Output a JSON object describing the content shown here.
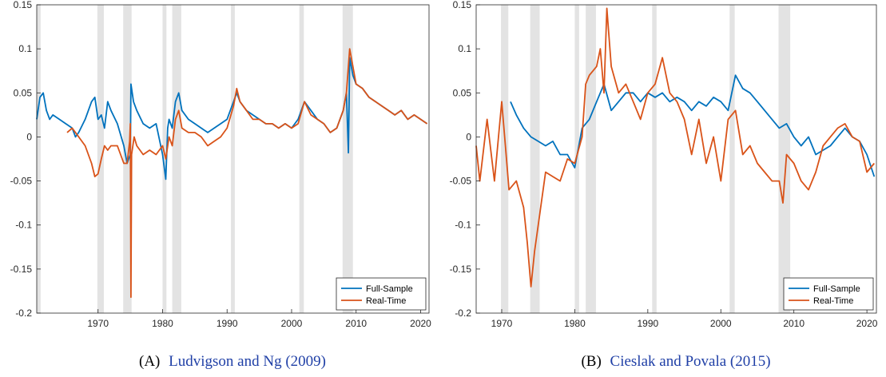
{
  "chart_data": [
    {
      "type": "line",
      "caption": {
        "tag": "(A)",
        "title": "Ludvigson and Ng (2009)"
      },
      "xlim": [
        1960.5,
        2021.3
      ],
      "ylim": [
        -0.2,
        0.15
      ],
      "xticks": [
        1970,
        1980,
        1990,
        2000,
        2010,
        2020
      ],
      "yticks": [
        -0.2,
        -0.15,
        -0.1,
        -0.05,
        0,
        0.05,
        0.1,
        0.15
      ],
      "ytick_labels": [
        "-0.2",
        "-0.15",
        "-0.1",
        "-0.05",
        "0",
        "0.05",
        "0.1",
        "0.15"
      ],
      "grid": false,
      "legend": "bottom-right",
      "recessions": [
        [
          1960.3,
          1961.1
        ],
        [
          1969.9,
          1970.9
        ],
        [
          1973.9,
          1975.2
        ],
        [
          1980.0,
          1980.6
        ],
        [
          1981.5,
          1982.9
        ],
        [
          1990.6,
          1991.2
        ],
        [
          2001.2,
          2001.9
        ],
        [
          2007.9,
          2009.5
        ]
      ],
      "series": [
        {
          "name": "Full-Sample",
          "color": "#0072bd",
          "x": [
            1960.5,
            1961,
            1961.5,
            1962,
            1962.5,
            1963,
            1964,
            1965,
            1966,
            1966.5,
            1967,
            1968,
            1969,
            1969.5,
            1970,
            1970.5,
            1971,
            1971.5,
            1972,
            1973,
            1974,
            1974.5,
            1975,
            1975.1,
            1975.5,
            1976,
            1977,
            1978,
            1979,
            1980,
            1980.5,
            1980.8,
            1981,
            1981.5,
            1982,
            1982.5,
            1983,
            1984,
            1985,
            1986,
            1987,
            1988,
            1989,
            1990,
            1991,
            1991.5,
            1992,
            1993,
            1994,
            1995,
            1996,
            1997,
            1998,
            1999,
            2000,
            2001,
            2002,
            2003,
            2004,
            2005,
            2006,
            2007,
            2008,
            2008.5,
            2008.8,
            2009,
            2009.5,
            2010,
            2011,
            2012,
            2013,
            2014,
            2015,
            2016,
            2017,
            2018,
            2019,
            2020,
            2021
          ],
          "y": [
            0.02,
            0.045,
            0.05,
            0.03,
            0.02,
            0.025,
            0.02,
            0.015,
            0.01,
            0.0,
            0.005,
            0.02,
            0.04,
            0.045,
            0.02,
            0.025,
            0.01,
            0.04,
            0.03,
            0.015,
            -0.01,
            -0.03,
            -0.02,
            0.06,
            0.04,
            0.03,
            0.015,
            0.01,
            0.015,
            -0.02,
            -0.048,
            0.01,
            0.02,
            0.01,
            0.04,
            0.05,
            0.03,
            0.02,
            0.015,
            0.01,
            0.005,
            0.01,
            0.015,
            0.02,
            0.04,
            0.05,
            0.04,
            0.03,
            0.025,
            0.02,
            0.015,
            0.015,
            0.01,
            0.015,
            0.01,
            0.02,
            0.04,
            0.03,
            0.02,
            0.015,
            0.005,
            0.01,
            0.03,
            0.05,
            -0.018,
            0.09,
            0.07,
            0.06,
            0.055,
            0.045,
            0.04,
            0.035,
            0.03,
            0.025,
            0.03,
            0.02,
            0.025,
            0.02,
            0.015
          ]
        },
        {
          "name": "Real-Time",
          "color": "#d95319",
          "x": [
            1965.2,
            1966,
            1967,
            1968,
            1969,
            1969.5,
            1970,
            1970.5,
            1971,
            1971.5,
            1972,
            1973,
            1974,
            1974.5,
            1974.9,
            1975,
            1975.1,
            1975.2,
            1975.4,
            1975.6,
            1976,
            1977,
            1978,
            1979,
            1980,
            1980.5,
            1981,
            1981.5,
            1982,
            1982.5,
            1983,
            1984,
            1985,
            1986,
            1987,
            1988,
            1989,
            1990,
            1991,
            1991.5,
            1992,
            1993,
            1994,
            1995,
            1996,
            1997,
            1998,
            1999,
            2000,
            2001,
            2002,
            2003,
            2004,
            2005,
            2006,
            2007,
            2008,
            2008.5,
            2009,
            2009.5,
            2010,
            2011,
            2012,
            2013,
            2014,
            2015,
            2016,
            2017,
            2018,
            2019,
            2020,
            2021
          ],
          "y": [
            0.005,
            0.01,
            0.0,
            -0.01,
            -0.03,
            -0.045,
            -0.042,
            -0.025,
            -0.01,
            -0.015,
            -0.01,
            -0.01,
            -0.03,
            -0.03,
            -0.005,
            0.015,
            -0.182,
            -0.02,
            -0.01,
            0.0,
            -0.01,
            -0.02,
            -0.015,
            -0.02,
            -0.01,
            -0.025,
            0.0,
            -0.01,
            0.02,
            0.03,
            0.01,
            0.005,
            0.005,
            0.0,
            -0.01,
            -0.005,
            0.0,
            0.01,
            0.035,
            0.055,
            0.04,
            0.03,
            0.02,
            0.02,
            0.015,
            0.015,
            0.01,
            0.015,
            0.01,
            0.015,
            0.04,
            0.025,
            0.02,
            0.015,
            0.005,
            0.01,
            0.03,
            0.05,
            0.1,
            0.08,
            0.06,
            0.055,
            0.045,
            0.04,
            0.035,
            0.03,
            0.025,
            0.03,
            0.02,
            0.025,
            0.02,
            0.015
          ]
        }
      ]
    },
    {
      "type": "line",
      "caption": {
        "tag": "(B)",
        "title": "Cieslak and Povala (2015)"
      },
      "xlim": [
        1966.5,
        2021.3
      ],
      "ylim": [
        -0.2,
        0.15
      ],
      "xticks": [
        1970,
        1980,
        1990,
        2000,
        2010,
        2020
      ],
      "yticks": [
        -0.2,
        -0.15,
        -0.1,
        -0.05,
        0,
        0.05,
        0.1,
        0.15
      ],
      "ytick_labels": [
        "-0.2",
        "-0.15",
        "-0.1",
        "-0.05",
        "0",
        "0.05",
        "0.1",
        "0.15"
      ],
      "grid": false,
      "legend": "bottom-right",
      "recessions": [
        [
          1969.9,
          1970.9
        ],
        [
          1973.9,
          1975.2
        ],
        [
          1980.0,
          1980.6
        ],
        [
          1981.5,
          1982.9
        ],
        [
          1990.6,
          1991.2
        ],
        [
          2001.2,
          2001.9
        ],
        [
          2007.9,
          2009.5
        ]
      ],
      "series": [
        {
          "name": "Full-Sample",
          "color": "#0072bd",
          "x": [
            1971.2,
            1972,
            1973,
            1974,
            1975,
            1976,
            1977,
            1978,
            1979,
            1980,
            1981,
            1982,
            1983,
            1984,
            1985,
            1986,
            1987,
            1988,
            1989,
            1990,
            1991,
            1992,
            1993,
            1994,
            1995,
            1996,
            1997,
            1998,
            1999,
            2000,
            2001,
            2002,
            2003,
            2004,
            2005,
            2006,
            2007,
            2008,
            2009,
            2010,
            2011,
            2012,
            2013,
            2014,
            2015,
            2016,
            2017,
            2018,
            2019,
            2020,
            2021
          ],
          "y": [
            0.04,
            0.025,
            0.01,
            0.0,
            -0.005,
            -0.01,
            -0.005,
            -0.02,
            -0.02,
            -0.035,
            0.01,
            0.02,
            0.04,
            0.06,
            0.03,
            0.04,
            0.05,
            0.05,
            0.04,
            0.05,
            0.045,
            0.05,
            0.04,
            0.045,
            0.04,
            0.03,
            0.04,
            0.035,
            0.045,
            0.04,
            0.03,
            0.07,
            0.055,
            0.05,
            0.04,
            0.03,
            0.02,
            0.01,
            0.015,
            0.0,
            -0.01,
            0.0,
            -0.02,
            -0.015,
            -0.01,
            0.0,
            0.01,
            0.0,
            -0.005,
            -0.02,
            -0.045
          ]
        },
        {
          "name": "Real-Time",
          "color": "#d95319",
          "x": [
            1966.5,
            1967,
            1968,
            1969,
            1970,
            1970.5,
            1971,
            1972,
            1973,
            1973.5,
            1974,
            1974.5,
            1975,
            1976,
            1977,
            1978,
            1979,
            1980,
            1981,
            1981.5,
            1982,
            1983,
            1983.5,
            1984,
            1984.4,
            1985,
            1986,
            1987,
            1988,
            1989,
            1990,
            1991,
            1992,
            1993,
            1994,
            1995,
            1996,
            1997,
            1998,
            1999,
            2000,
            2001,
            2002,
            2003,
            2004,
            2005,
            2006,
            2007,
            2008,
            2008.5,
            2009,
            2010,
            2011,
            2012,
            2013,
            2014,
            2015,
            2016,
            2017,
            2018,
            2019,
            2020,
            2021
          ],
          "y": [
            -0.01,
            -0.05,
            0.02,
            -0.05,
            0.04,
            -0.01,
            -0.06,
            -0.05,
            -0.08,
            -0.12,
            -0.17,
            -0.13,
            -0.1,
            -0.04,
            -0.045,
            -0.05,
            -0.025,
            -0.03,
            0.0,
            0.06,
            0.07,
            0.08,
            0.1,
            0.05,
            0.146,
            0.08,
            0.05,
            0.06,
            0.04,
            0.02,
            0.05,
            0.06,
            0.09,
            0.05,
            0.04,
            0.02,
            -0.02,
            0.02,
            -0.03,
            0.0,
            -0.05,
            0.02,
            0.03,
            -0.02,
            -0.01,
            -0.03,
            -0.04,
            -0.05,
            -0.05,
            -0.075,
            -0.02,
            -0.03,
            -0.05,
            -0.06,
            -0.04,
            -0.01,
            0.0,
            0.01,
            0.015,
            0.0,
            -0.005,
            -0.04,
            -0.03
          ]
        }
      ]
    }
  ]
}
